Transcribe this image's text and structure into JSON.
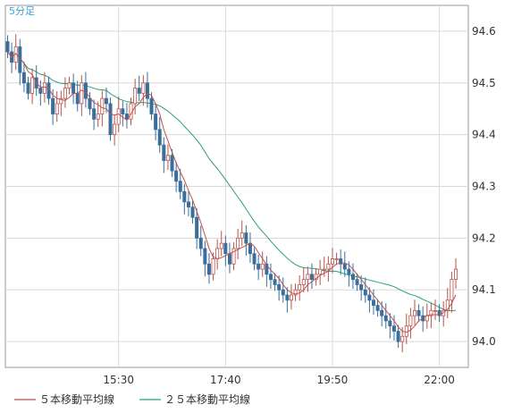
{
  "colors": {
    "background": "#ffffff",
    "grid": "#d9d9d9",
    "frame": "#9a9a9a",
    "up_candle": "#b9524a",
    "down_candle": "#3a6e9c",
    "ma5": "#c0504d",
    "ma25": "#2aa07a",
    "period_label": "#3aa0d8"
  },
  "chart_data": {
    "type": "candlestick",
    "period_label": "5分足",
    "y_ticks": [
      "94.6",
      "94.5",
      "94.4",
      "94.3",
      "94.2",
      "94.1",
      "94.0"
    ],
    "y_tick_values": [
      94.6,
      94.5,
      94.4,
      94.3,
      94.2,
      94.1,
      94.0
    ],
    "ylim": [
      93.95,
      94.65
    ],
    "x_ticks": [
      "15:30",
      "17:40",
      "19:50",
      "22:00"
    ],
    "x_tick_times": [
      "15:30",
      "17:40",
      "19:50",
      "22:00"
    ],
    "x_start": "13:15",
    "interval_minutes": 5,
    "legend": [
      {
        "label": "５本移動平均線",
        "color": "#c0504d"
      },
      {
        "label": "２５本移動平均線",
        "color": "#2aa07a"
      }
    ],
    "closes": [
      94.56,
      94.54,
      94.57,
      94.52,
      94.5,
      94.48,
      94.51,
      94.49,
      94.48,
      94.5,
      94.47,
      94.44,
      94.46,
      94.47,
      94.49,
      94.5,
      94.48,
      94.46,
      94.5,
      94.47,
      94.45,
      94.43,
      94.44,
      94.47,
      94.46,
      94.4,
      94.42,
      94.45,
      94.44,
      94.43,
      94.46,
      94.49,
      94.48,
      94.5,
      94.47,
      94.44,
      94.41,
      94.38,
      94.35,
      94.36,
      94.33,
      94.31,
      94.29,
      94.27,
      94.26,
      94.24,
      94.2,
      94.18,
      94.15,
      94.13,
      94.16,
      94.18,
      94.19,
      94.17,
      94.15,
      94.18,
      94.2,
      94.21,
      94.19,
      94.17,
      94.15,
      94.14,
      94.15,
      94.13,
      94.12,
      94.11,
      94.1,
      94.09,
      94.08,
      94.09,
      94.1,
      94.11,
      94.12,
      94.13,
      94.12,
      94.13,
      94.14,
      94.14,
      94.15,
      94.16,
      94.16,
      94.15,
      94.14,
      94.13,
      94.12,
      94.11,
      94.1,
      94.09,
      94.08,
      94.07,
      94.06,
      94.05,
      94.04,
      94.03,
      94.02,
      94.0,
      94.01,
      94.03,
      94.05,
      94.06,
      94.05,
      94.04,
      94.05,
      94.06,
      94.06,
      94.05,
      94.06,
      94.08,
      94.12,
      94.14
    ]
  }
}
